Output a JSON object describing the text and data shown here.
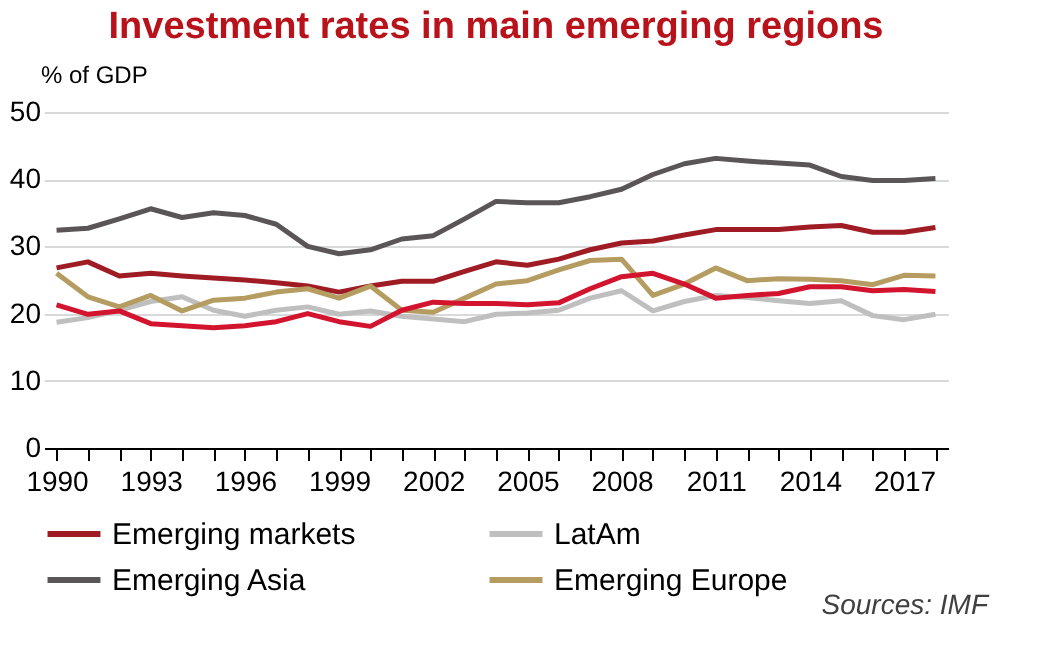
{
  "chart_data": {
    "type": "line",
    "title": "Investment rates in main emerging regions",
    "ylabel": "% of GDP",
    "x": [
      1990,
      1991,
      1992,
      1993,
      1994,
      1995,
      1996,
      1997,
      1998,
      1999,
      2000,
      2001,
      2002,
      2003,
      2004,
      2005,
      2006,
      2007,
      2008,
      2009,
      2010,
      2011,
      2012,
      2013,
      2014,
      2015,
      2016,
      2017,
      2018
    ],
    "series": [
      {
        "name": "Emerging markets",
        "color": "#a01c24",
        "values": [
          26.8,
          27.7,
          25.6,
          26.0,
          25.6,
          25.3,
          25.0,
          24.6,
          24.1,
          23.2,
          24.1,
          24.8,
          24.8,
          26.3,
          27.7,
          27.2,
          28.1,
          29.5,
          30.5,
          30.8,
          31.7,
          32.5,
          32.5,
          32.5,
          32.9,
          33.1,
          32.1,
          32.1,
          32.8
        ]
      },
      {
        "name": "LatAm",
        "color": "#bfbfbf",
        "values": [
          18.7,
          19.4,
          20.5,
          21.8,
          22.5,
          20.5,
          19.6,
          20.5,
          21.0,
          19.9,
          20.4,
          19.6,
          19.2,
          18.8,
          19.9,
          20.1,
          20.5,
          22.3,
          23.4,
          20.4,
          21.8,
          22.7,
          22.4,
          21.9,
          21.5,
          21.9,
          19.7,
          19.1,
          19.9
        ]
      },
      {
        "name": "Emerging Asia",
        "color": "#5a5658",
        "values": [
          32.4,
          32.7,
          34.1,
          35.6,
          34.3,
          35.0,
          34.6,
          33.3,
          30.0,
          28.9,
          29.5,
          31.1,
          31.6,
          34.1,
          36.7,
          36.5,
          36.5,
          37.4,
          38.5,
          40.7,
          42.3,
          43.1,
          42.7,
          42.4,
          42.1,
          40.4,
          39.8,
          39.8,
          40.1
        ]
      },
      {
        "name": "Emerging Europe",
        "color": "#b59d62",
        "values": [
          26.0,
          22.5,
          21.0,
          22.7,
          20.4,
          22.0,
          22.3,
          23.2,
          23.7,
          22.3,
          24.1,
          20.5,
          20.2,
          22.3,
          24.4,
          24.9,
          26.5,
          27.9,
          28.1,
          22.7,
          24.4,
          26.8,
          24.9,
          25.2,
          25.1,
          24.9,
          24.3,
          25.7,
          25.6
        ]
      },
      {
        "color": "#d2142e",
        "values": [
          21.3,
          19.9,
          20.4,
          18.5,
          18.2,
          17.9,
          18.2,
          18.8,
          20.0,
          18.8,
          18.1,
          20.5,
          21.7,
          21.5,
          21.5,
          21.3,
          21.6,
          23.7,
          25.5,
          26.0,
          24.4,
          22.3,
          22.7,
          23.0,
          24.0,
          24.0,
          23.4,
          23.6,
          23.3
        ]
      }
    ],
    "xlim": [
      1989.6,
      2018.4
    ],
    "xticks": [
      1990,
      {
        "value": 1991,
        "label": null
      },
      {
        "value": 1992,
        "label": null
      },
      1993,
      {
        "value": 1994,
        "label": null
      },
      {
        "value": 1995,
        "label": null
      },
      1996,
      {
        "value": 1997,
        "label": null
      },
      {
        "value": 1998,
        "label": null
      },
      1999,
      {
        "value": 2000,
        "label": null
      },
      {
        "value": 2001,
        "label": null
      },
      2002,
      {
        "value": 2003,
        "label": null
      },
      {
        "value": 2004,
        "label": null
      },
      2005,
      {
        "value": 2006,
        "label": null
      },
      {
        "value": 2007,
        "label": null
      },
      2008,
      {
        "value": 2009,
        "label": null
      },
      {
        "value": 2010,
        "label": null
      },
      2011,
      {
        "value": 2012,
        "label": null
      },
      {
        "value": 2013,
        "label": null
      },
      2014,
      {
        "value": 2015,
        "label": null
      },
      {
        "value": 2016,
        "label": null
      },
      2017,
      {
        "value": 2018,
        "label": null
      }
    ],
    "ylim": [
      0,
      50
    ],
    "yticks": [
      0,
      10,
      20,
      30,
      40,
      50
    ],
    "grid": "y",
    "legend": "bottom",
    "line_style": "solid",
    "marker": "none",
    "annotations": [
      "Sources: IMF"
    ]
  }
}
